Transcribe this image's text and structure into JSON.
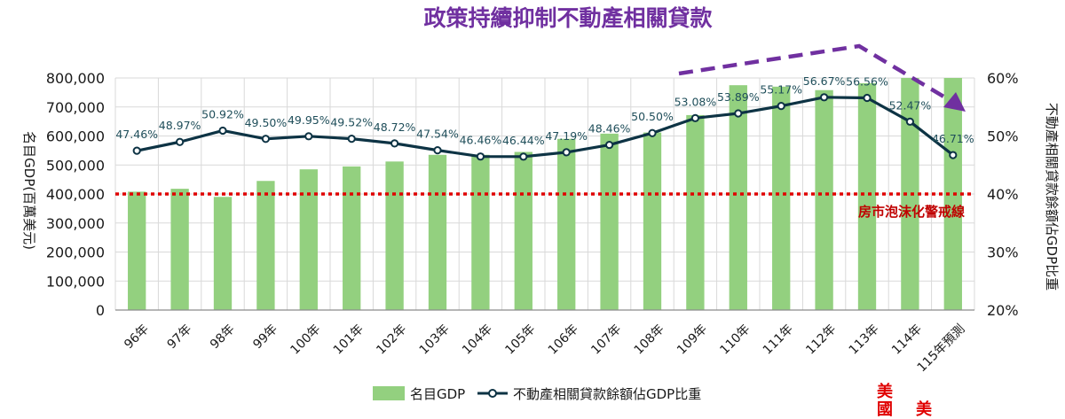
{
  "headline": "政策持續抑制不動產相關貸款",
  "warning_line_label": "房市泡沫化警戒線",
  "corner_red_text": [
    "美",
    "國",
    "美"
  ],
  "colors": {
    "bar": "#93d07f",
    "line": "#0d3344",
    "warning": "#e00000",
    "arrow": "#7030a0",
    "headline": "#7030a0"
  },
  "chart_data": {
    "type": "bar",
    "categories": [
      "96年",
      "97年",
      "98年",
      "99年",
      "100年",
      "101年",
      "102年",
      "103年",
      "104年",
      "105年",
      "106年",
      "107年",
      "108年",
      "109年",
      "110年",
      "111年",
      "112年",
      "113年",
      "114年",
      "115年預測"
    ],
    "series": [
      {
        "name": "名目GDP",
        "type": "bar",
        "axis": "left",
        "values": [
          408000,
          418000,
          390000,
          445000,
          485000,
          495000,
          512000,
          535000,
          535000,
          545000,
          590000,
          608000,
          612000,
          672000,
          775000,
          770000,
          758000,
          782000,
          800000,
          800000
        ]
      },
      {
        "name": "不動產相關貸款餘額佔GDP比重",
        "type": "line",
        "axis": "right",
        "values": [
          47.46,
          48.97,
          50.92,
          49.5,
          49.95,
          49.52,
          48.72,
          47.54,
          46.46,
          46.44,
          47.19,
          48.46,
          50.5,
          53.08,
          53.89,
          55.17,
          56.67,
          56.56,
          52.47,
          46.71
        ],
        "labels": [
          "47.46%",
          "48.97%",
          "50.92%",
          "49.50%",
          "49.95%",
          "49.52%",
          "48.72%",
          "47.54%",
          "46.46%",
          "46.44%",
          "47.19%",
          "48.46%",
          "50.50%",
          "53.08%",
          "53.89%",
          "55.17%",
          "56.67%",
          "56.56%",
          "52.47%",
          "46.71%"
        ]
      }
    ],
    "ylabel": "名目GDP(百萬美元)",
    "y2label": "不動產相關貸款餘額佔GDP比重",
    "ylim": [
      0,
      800000
    ],
    "y2lim": [
      20,
      60
    ],
    "yticks": [
      "0",
      "100,000",
      "200,000",
      "300,000",
      "400,000",
      "500,000",
      "600,000",
      "700,000",
      "800,000"
    ],
    "y2ticks": [
      "20%",
      "30%",
      "40%",
      "50%",
      "60%"
    ],
    "threshold": {
      "axis": "right",
      "value": 40
    },
    "grid": true,
    "legend_position": "bottom-center"
  }
}
